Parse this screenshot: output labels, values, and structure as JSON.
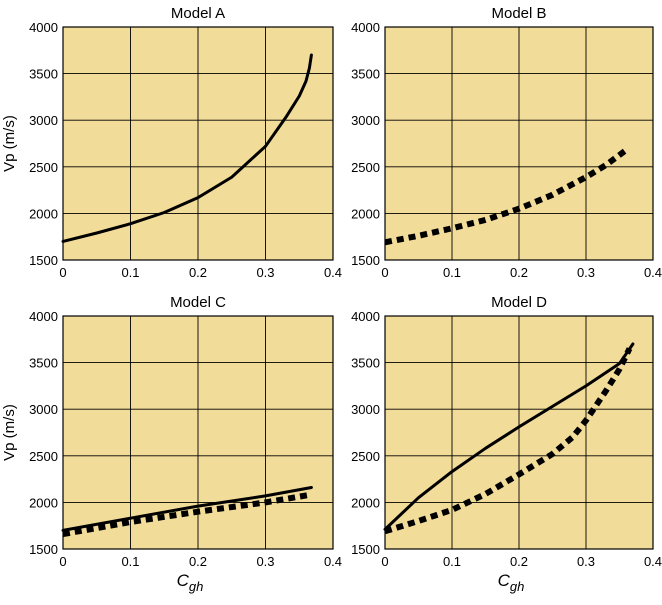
{
  "figure": {
    "background": "#ffffff",
    "panel_color": "#f2dc99",
    "grid_color": "#000000"
  },
  "axis_labels": {
    "ylabel": "Vp (m/s)",
    "xlabel_main": "C",
    "xlabel_sub": "gh"
  },
  "chart_data": [
    {
      "type": "line",
      "title": "Model A",
      "xlim": [
        0,
        0.4
      ],
      "ylim": [
        1500,
        4000
      ],
      "xticks": [
        "0",
        "0.1",
        "0.2",
        "0.3",
        "0.4"
      ],
      "yticks": [
        "1500",
        "2000",
        "2500",
        "3000",
        "3500",
        "4000"
      ],
      "xlabel": "",
      "ylabel": "Vp (m/s)",
      "grid": true,
      "series": [
        {
          "name": "solid",
          "style": "solid",
          "x": [
            0,
            0.05,
            0.1,
            0.15,
            0.2,
            0.25,
            0.3,
            0.33,
            0.35,
            0.36,
            0.365,
            0.368
          ],
          "y": [
            1700,
            1790,
            1890,
            2010,
            2170,
            2390,
            2720,
            3030,
            3260,
            3420,
            3560,
            3700
          ]
        }
      ]
    },
    {
      "type": "line",
      "title": "Model B",
      "xlim": [
        0,
        0.4
      ],
      "ylim": [
        1500,
        4000
      ],
      "xticks": [
        "0",
        "0.1",
        "0.2",
        "0.3",
        "0.4"
      ],
      "yticks": [
        "1500",
        "2000",
        "2500",
        "3000",
        "3500",
        "4000"
      ],
      "xlabel": "",
      "ylabel": "",
      "grid": true,
      "series": [
        {
          "name": "dotted",
          "style": "dotted",
          "x": [
            0,
            0.05,
            0.1,
            0.15,
            0.2,
            0.25,
            0.3,
            0.33,
            0.36
          ],
          "y": [
            1690,
            1760,
            1840,
            1930,
            2050,
            2200,
            2390,
            2520,
            2680
          ]
        }
      ]
    },
    {
      "type": "line",
      "title": "Model C",
      "xlim": [
        0,
        0.4
      ],
      "ylim": [
        1500,
        4000
      ],
      "xticks": [
        "0",
        "0.1",
        "0.2",
        "0.3",
        "0.4"
      ],
      "yticks": [
        "1500",
        "2000",
        "2500",
        "3000",
        "3500",
        "4000"
      ],
      "xlabel": "Cgh",
      "ylabel": "Vp (m/s)",
      "grid": true,
      "series": [
        {
          "name": "solid",
          "style": "solid",
          "x": [
            0,
            0.1,
            0.2,
            0.3,
            0.368
          ],
          "y": [
            1700,
            1830,
            1960,
            2070,
            2160
          ]
        },
        {
          "name": "dotted",
          "style": "dotted",
          "x": [
            0,
            0.1,
            0.2,
            0.3,
            0.365
          ],
          "y": [
            1660,
            1790,
            1900,
            2000,
            2080
          ]
        }
      ]
    },
    {
      "type": "line",
      "title": "Model D",
      "xlim": [
        0,
        0.4
      ],
      "ylim": [
        1500,
        4000
      ],
      "xticks": [
        "0",
        "0.1",
        "0.2",
        "0.3",
        "0.4"
      ],
      "yticks": [
        "1500",
        "2000",
        "2500",
        "3000",
        "3500",
        "4000"
      ],
      "xlabel": "Cgh",
      "ylabel": "",
      "grid": true,
      "series": [
        {
          "name": "solid",
          "style": "solid",
          "x": [
            0,
            0.05,
            0.1,
            0.15,
            0.2,
            0.25,
            0.3,
            0.35,
            0.37
          ],
          "y": [
            1710,
            2050,
            2330,
            2580,
            2810,
            3030,
            3250,
            3490,
            3700
          ]
        },
        {
          "name": "dotted",
          "style": "dotted",
          "x": [
            0,
            0.05,
            0.1,
            0.15,
            0.2,
            0.25,
            0.28,
            0.3,
            0.33,
            0.35,
            0.365
          ],
          "y": [
            1690,
            1800,
            1920,
            2090,
            2300,
            2520,
            2700,
            2880,
            3200,
            3430,
            3650
          ]
        }
      ]
    }
  ]
}
